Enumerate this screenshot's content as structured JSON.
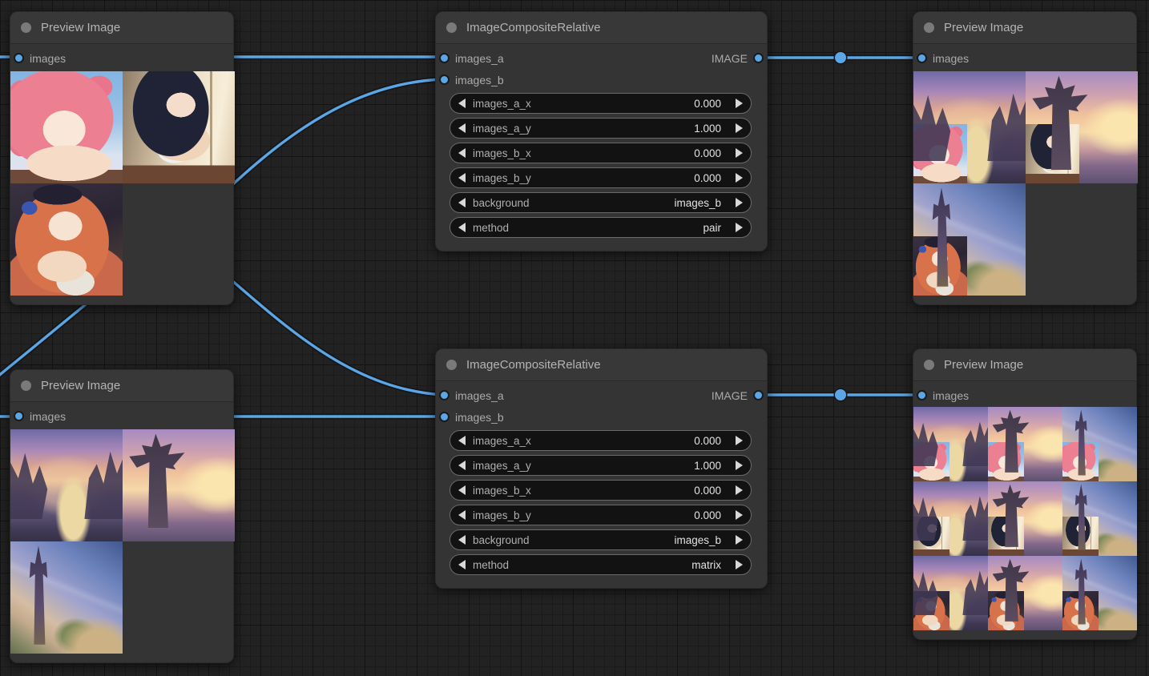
{
  "canvas": {
    "background_color": "#222222",
    "link_color": "#5ba6e6",
    "node_color": "#343434",
    "slot_type": "IMAGE"
  },
  "nodes": {
    "preview_top_left": {
      "title": "Preview Image",
      "input_label": "images"
    },
    "preview_top_right": {
      "title": "Preview Image",
      "input_label": "images"
    },
    "preview_bottom_left": {
      "title": "Preview Image",
      "input_label": "images"
    },
    "preview_bottom_right": {
      "title": "Preview Image",
      "input_label": "images"
    },
    "composite_top": {
      "title": "ImageCompositeRelative",
      "input_a": "images_a",
      "input_b": "images_b",
      "output": "IMAGE",
      "widgets": [
        {
          "name": "images_a_x",
          "value": "0.000"
        },
        {
          "name": "images_a_y",
          "value": "1.000"
        },
        {
          "name": "images_b_x",
          "value": "0.000"
        },
        {
          "name": "images_b_y",
          "value": "0.000"
        },
        {
          "name": "background",
          "value": "images_b"
        },
        {
          "name": "method",
          "value": "pair"
        }
      ]
    },
    "composite_bottom": {
      "title": "ImageCompositeRelative",
      "input_a": "images_a",
      "input_b": "images_b",
      "output": "IMAGE",
      "widgets": [
        {
          "name": "images_a_x",
          "value": "0.000"
        },
        {
          "name": "images_a_y",
          "value": "1.000"
        },
        {
          "name": "images_b_x",
          "value": "0.000"
        },
        {
          "name": "images_b_y",
          "value": "0.000"
        },
        {
          "name": "background",
          "value": "images_b"
        },
        {
          "name": "method",
          "value": "matrix"
        }
      ]
    }
  },
  "previews": {
    "top_left": {
      "cols": 2,
      "cells": [
        {
          "bg": "char-pink"
        },
        {
          "bg": "char-black"
        },
        {
          "bg": "char-orange"
        }
      ]
    },
    "top_right": {
      "cols": 2,
      "cells": [
        {
          "bg": "land-canyon",
          "fg": "char-pink"
        },
        {
          "bg": "land-tower",
          "fg": "char-black"
        },
        {
          "bg": "land-castle",
          "fg": "char-orange"
        }
      ]
    },
    "bottom_left": {
      "cols": 2,
      "cells": [
        {
          "bg": "land-canyon"
        },
        {
          "bg": "land-tower"
        },
        {
          "bg": "land-castle"
        }
      ]
    },
    "bottom_right": {
      "cols": 3,
      "cells": [
        {
          "bg": "land-canyon",
          "fg": "char-pink"
        },
        {
          "bg": "land-tower",
          "fg": "char-pink"
        },
        {
          "bg": "land-castle",
          "fg": "char-pink"
        },
        {
          "bg": "land-canyon",
          "fg": "char-black"
        },
        {
          "bg": "land-tower",
          "fg": "char-black"
        },
        {
          "bg": "land-castle",
          "fg": "char-black"
        },
        {
          "bg": "land-canyon",
          "fg": "char-orange"
        },
        {
          "bg": "land-tower",
          "fg": "char-orange"
        },
        {
          "bg": "land-castle",
          "fg": "char-orange"
        }
      ]
    }
  }
}
